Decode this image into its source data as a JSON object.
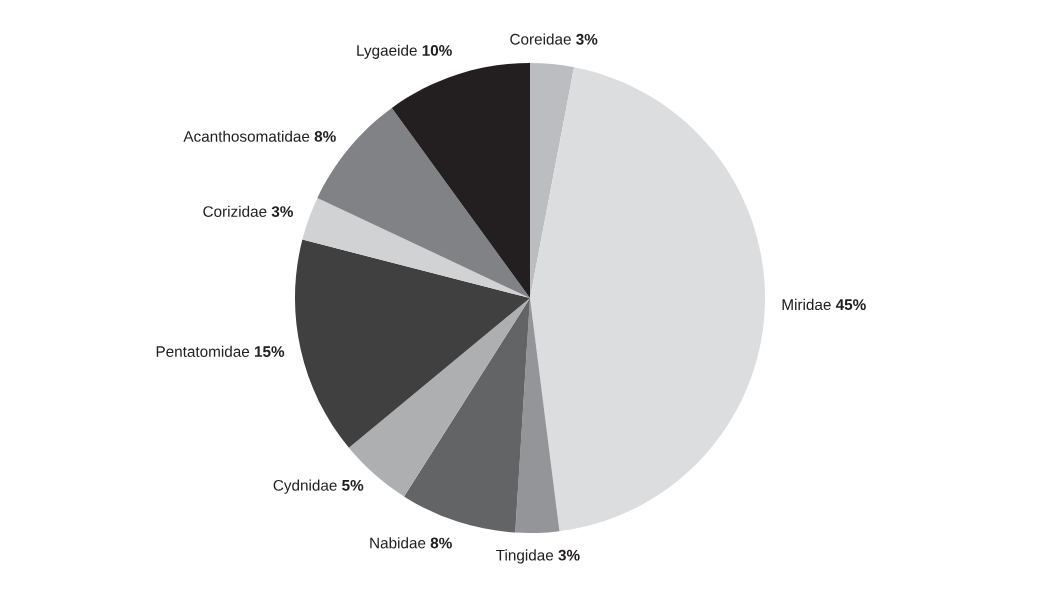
{
  "chart_data": {
    "type": "pie",
    "categories": [
      "Coreidae",
      "Miridae",
      "Tingidae",
      "Nabidae",
      "Cydnidae",
      "Pentatomidae",
      "Corizidae",
      "Acanthosomatidae",
      "Lygaeide"
    ],
    "values": [
      3,
      45,
      3,
      8,
      5,
      15,
      3,
      8,
      10
    ],
    "colors": [
      "#bcbdc0",
      "#dcdddf",
      "#939598",
      "#636466",
      "#aeafb1",
      "#404041",
      "#d1d2d4",
      "#808285",
      "#231f20"
    ],
    "value_labels": [
      "3%",
      "45%",
      "3%",
      "8%",
      "5%",
      "15%",
      "3%",
      "8%",
      "10%"
    ],
    "legend": false
  }
}
